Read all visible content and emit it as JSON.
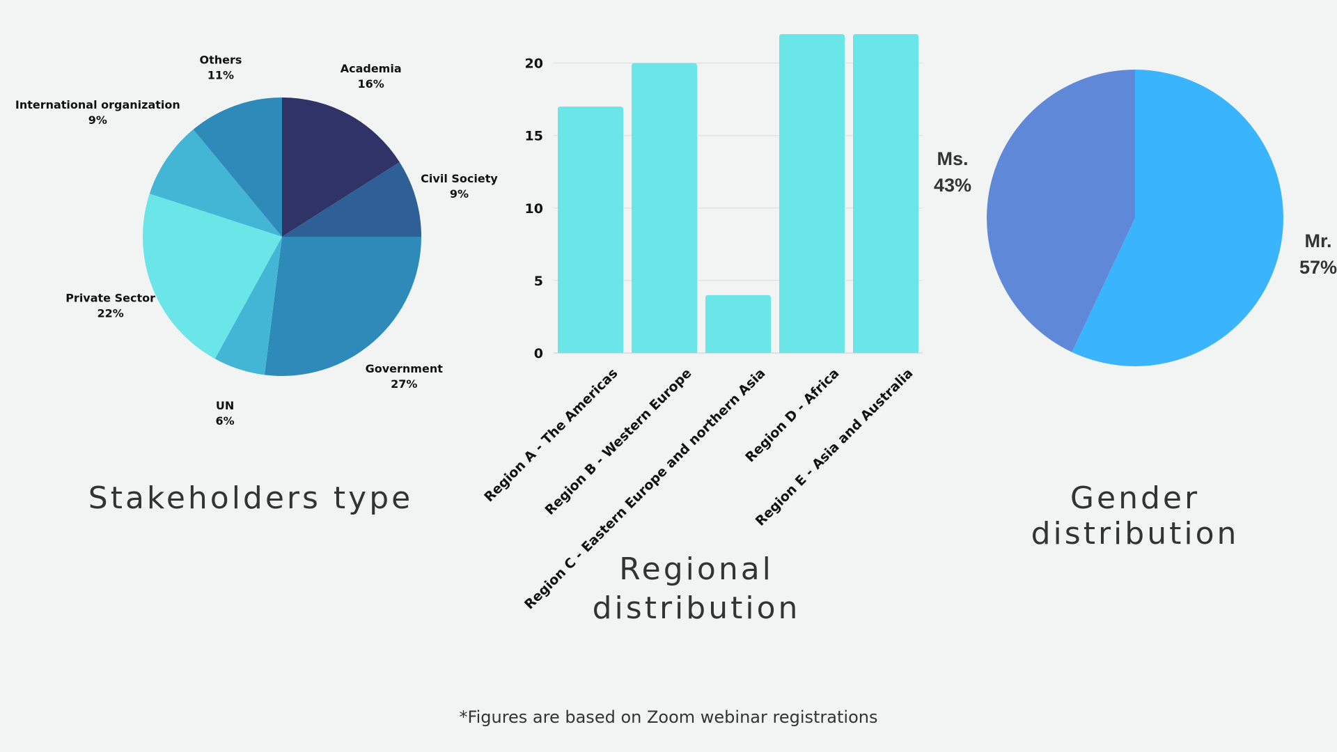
{
  "chart_data": [
    {
      "type": "pie",
      "title": "Stakeholders type",
      "slices": [
        {
          "name": "Academia",
          "value": 16,
          "label": "16%",
          "color": "#303368"
        },
        {
          "name": "Civil Society",
          "value": 9,
          "label": "9%",
          "color": "#2e5f97"
        },
        {
          "name": "Government",
          "value": 27,
          "label": "27%",
          "color": "#2e8bb9"
        },
        {
          "name": "UN",
          "value": 6,
          "label": "6%",
          "color": "#43b6d6"
        },
        {
          "name": "Private Sector",
          "value": 22,
          "label": "22%",
          "color": "#6ae5e8"
        },
        {
          "name": "International organization",
          "value": 9,
          "label": "9%",
          "color": "#43b6d6"
        },
        {
          "name": "Others",
          "value": 11,
          "label": "11%",
          "color": "#2e8bb9"
        }
      ]
    },
    {
      "type": "bar",
      "title": "Regional distribution",
      "categories": [
        "Region A - The Americas",
        "Region B - Western Europe",
        "Region C - Eastern Europe and northern Asia",
        "Region D - Africa",
        "Region E - Asia and Australia"
      ],
      "values": [
        17,
        20,
        4,
        22,
        22
      ],
      "ylim": [
        0,
        22
      ],
      "yticks": [
        "0",
        "5",
        "10",
        "15",
        "20"
      ],
      "grid": true,
      "color": "#6ae5e8"
    },
    {
      "type": "pie",
      "title": "Gender distribution",
      "slices": [
        {
          "name": "Mr.",
          "value": 57,
          "label": "57%",
          "color": "#3ab4fc"
        },
        {
          "name": "Ms.",
          "value": 43,
          "label": "43%",
          "color": "#5f88d8"
        }
      ]
    }
  ],
  "footnote": "*Figures are based on Zoom webinar registrations"
}
